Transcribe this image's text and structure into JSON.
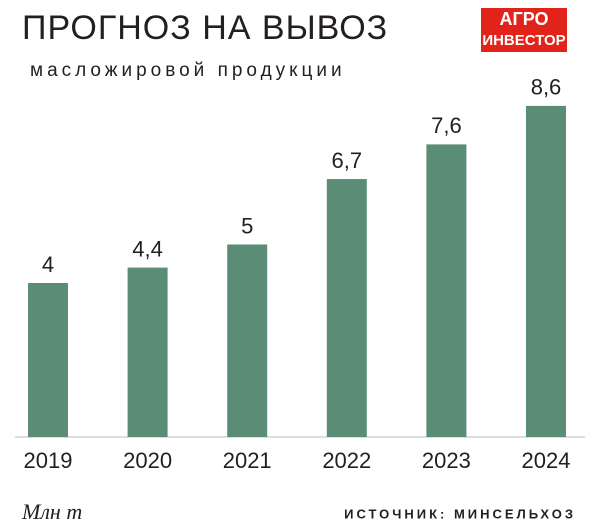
{
  "chart_data": {
    "type": "bar",
    "title": "ПРОГНОЗ НА ВЫВОЗ",
    "subtitle": "масложировой продукции",
    "logo": [
      "АГРО",
      "ИНВЕСТОР"
    ],
    "categories": [
      "2019",
      "2020",
      "2021",
      "2022",
      "2023",
      "2024"
    ],
    "values": [
      4,
      4.4,
      5,
      6.7,
      7.6,
      8.6
    ],
    "value_labels": [
      "4",
      "4,4",
      "5",
      "6,7",
      "7,6",
      "8,6"
    ],
    "color": "#5b8c76",
    "unit": "Млн т",
    "source": "ИСТОЧНИК: МИНСЕЛЬХОЗ"
  }
}
